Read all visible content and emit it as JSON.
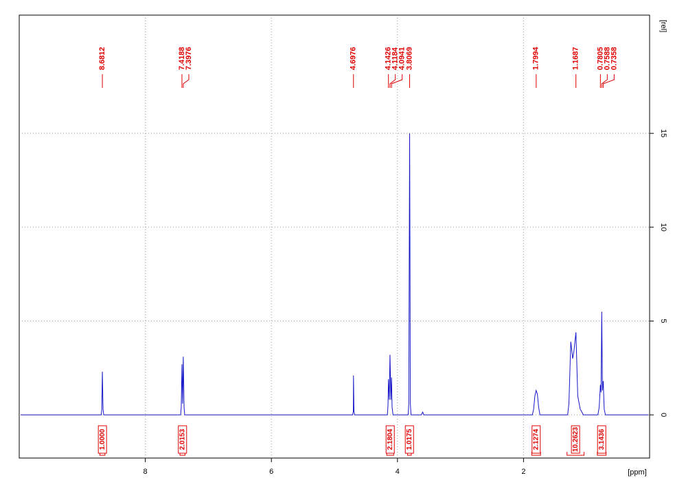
{
  "chart_data": {
    "type": "line",
    "xlabel": "[ppm]",
    "ylabel": "[rel]",
    "xlim": [
      10,
      0
    ],
    "ylim": [
      -2.3,
      21.3
    ],
    "xticks": [
      8,
      6,
      4,
      2
    ],
    "yticks": [
      0,
      5,
      10,
      15
    ],
    "grid": true,
    "x": [
      9.98,
      8.7,
      8.69,
      8.6812,
      8.67,
      8.66,
      7.44,
      7.43,
      7.4188,
      7.408,
      7.3976,
      7.385,
      7.375,
      4.71,
      4.7,
      4.6976,
      4.69,
      4.68,
      4.16,
      4.15,
      4.1426,
      4.13,
      4.1184,
      4.105,
      4.0941,
      4.085,
      4.07,
      3.83,
      3.82,
      3.8069,
      3.795,
      3.785,
      3.62,
      3.6,
      3.58,
      1.86,
      1.84,
      1.82,
      1.8,
      1.78,
      1.76,
      1.74,
      1.3,
      1.28,
      1.25,
      1.22,
      1.2,
      1.1687,
      1.14,
      1.1,
      1.05,
      0.82,
      0.8,
      0.7805,
      0.77,
      0.7588,
      0.748,
      0.7358,
      0.72,
      0.7,
      0.02
    ],
    "series": [
      {
        "color": "#1414c8",
        "values": [
          0,
          0,
          0.3,
          2.3,
          0.3,
          0,
          0,
          0.4,
          2.7,
          0.6,
          3.1,
          0.4,
          0,
          0,
          0.2,
          2.1,
          0.2,
          0,
          0,
          0.5,
          1.9,
          0.8,
          3.2,
          0.8,
          2.0,
          0.4,
          0,
          0,
          0.6,
          15.0,
          0.6,
          0,
          0,
          0.15,
          0,
          0,
          0.3,
          1.0,
          1.3,
          1.1,
          0.4,
          0,
          0,
          0.6,
          3.9,
          3.0,
          3.4,
          4.4,
          1.0,
          0.3,
          0,
          0,
          0.4,
          1.6,
          1.2,
          5.5,
          1.3,
          1.8,
          0.3,
          0,
          0
        ]
      }
    ],
    "annotation_color": "#e00000",
    "peak_labels": [
      8.6812,
      7.4188,
      7.3976,
      4.6976,
      4.1426,
      4.1184,
      4.0941,
      3.8069,
      1.7994,
      1.1687,
      0.7805,
      0.7588,
      0.7358
    ],
    "integrals": {
      "values": [
        1,
        2.0153,
        2.1804,
        1.0175,
        2.1274,
        10.2623,
        3.1436
      ],
      "value_labels": [
        "1.0000",
        "2.0153",
        "2.1804",
        "1.0175",
        "2.1274",
        "10.2623",
        "3.1436"
      ],
      "ranges": [
        [
          8.72,
          8.64
        ],
        [
          7.45,
          7.37
        ],
        [
          4.17,
          4.06
        ],
        [
          3.84,
          3.78
        ],
        [
          1.87,
          1.73
        ],
        [
          1.31,
          1.04
        ],
        [
          0.83,
          0.69
        ]
      ]
    }
  }
}
